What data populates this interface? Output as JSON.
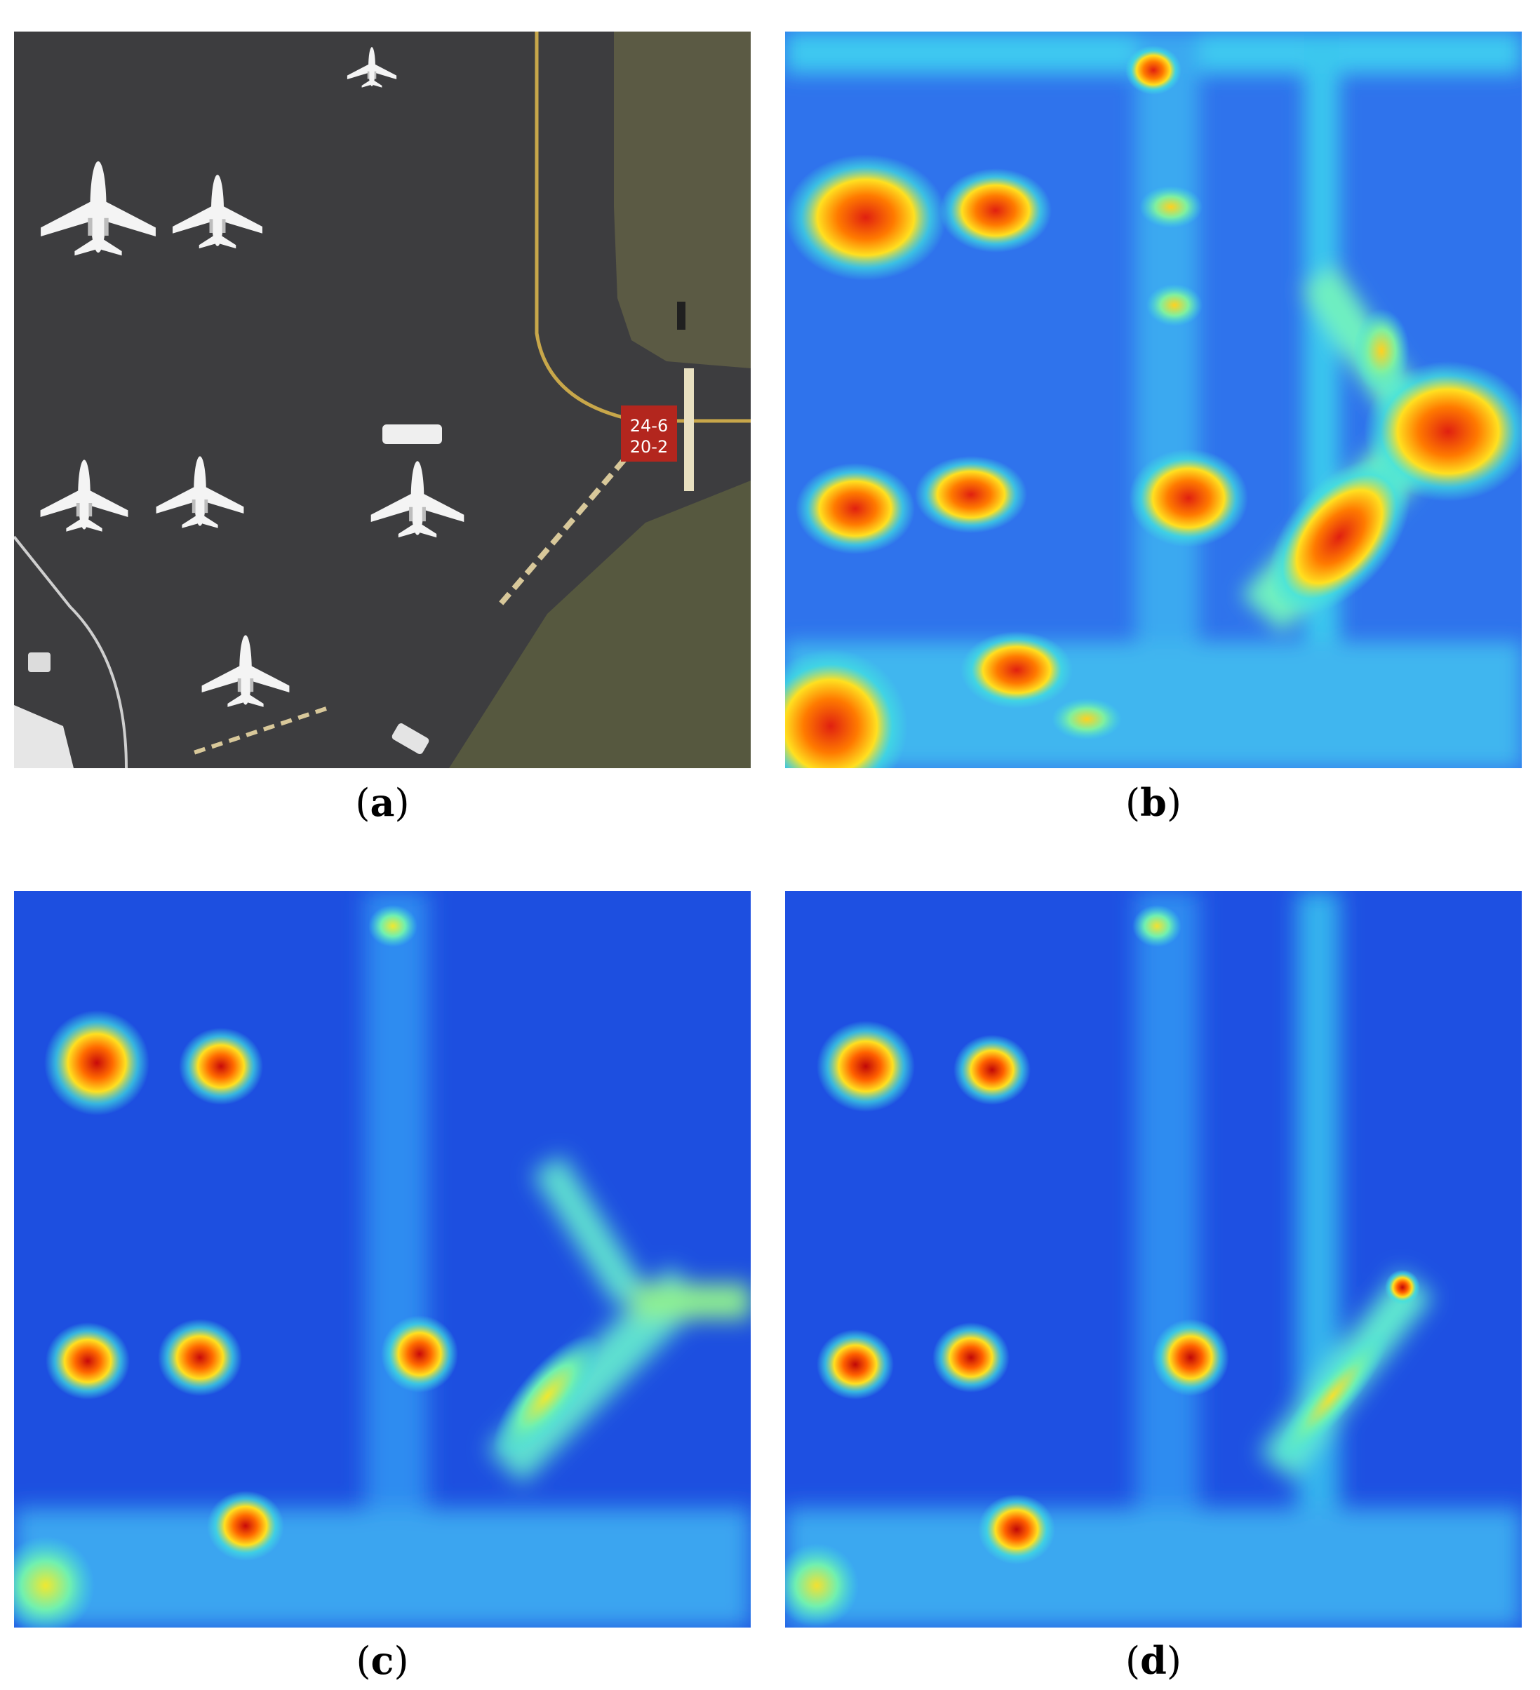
{
  "panels": [
    {
      "id": "a",
      "caption_letter": "a",
      "kind": "aerial-airport-photo"
    },
    {
      "id": "b",
      "caption_letter": "b",
      "kind": "heatmap"
    },
    {
      "id": "c",
      "caption_letter": "c",
      "kind": "heatmap"
    },
    {
      "id": "d",
      "caption_letter": "d",
      "kind": "heatmap"
    }
  ],
  "runway_marking": {
    "line1": "24-6",
    "line2": "20-2"
  },
  "colors": {
    "tarmac": "#3d3d3f",
    "grass": "#5b5a44",
    "aircraft": "#f4f4f4",
    "heat_low": "#1f4fe6",
    "heat_mid": "#36d3f0",
    "heat_high": "#e02010",
    "marking_red": "#b3261e"
  }
}
